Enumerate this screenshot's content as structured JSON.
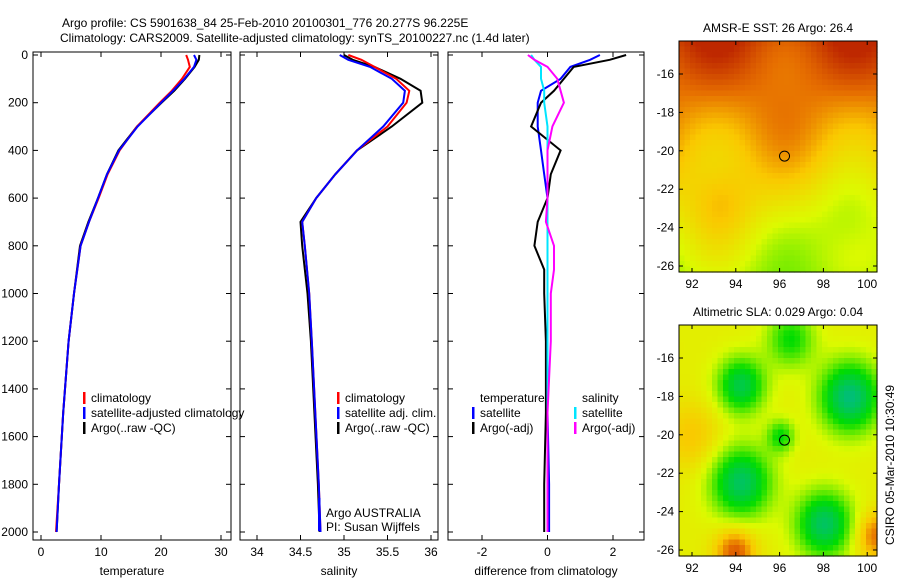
{
  "title_line1": "Argo profile: CS 5901638_84 25-Feb-2010 20100301_776 20.277S 96.225E",
  "title_line2": "Climatology: CARS2009. Satellite-adjusted climatology: synTS_20100227.nc (1.4d later)",
  "side_label": "CSIRO 05-Mar-2010 10:30:49",
  "colors": {
    "climatology": "#ff0000",
    "satellite": "#0000ff",
    "argo": "#000000",
    "sat_sal": "#00e5ff",
    "argo_sal": "#ff00ff"
  },
  "chart_data": [
    {
      "type": "line",
      "xlabel": "temperature",
      "xlim": [
        -2,
        32
      ],
      "ylim": [
        2050,
        0
      ],
      "xticks": [
        0,
        10,
        20,
        30
      ],
      "yticks": [
        0,
        200,
        400,
        600,
        800,
        1000,
        1200,
        1400,
        1600,
        1800,
        2000
      ],
      "legend": [
        "climatology",
        "satellite-adjusted climatology",
        "Argo(..raw -QC)"
      ],
      "depth": [
        0,
        20,
        50,
        100,
        150,
        200,
        300,
        400,
        500,
        600,
        700,
        800,
        1000,
        1200,
        1500,
        1800,
        2000
      ],
      "series": [
        {
          "name": "climatology",
          "values": [
            24.2,
            24.5,
            24.8,
            23.5,
            21.8,
            19.8,
            16.0,
            13.1,
            11.1,
            9.6,
            8.0,
            6.6,
            5.5,
            4.6,
            3.7,
            3.0,
            2.5
          ]
        },
        {
          "name": "satellite-adjusted climatology",
          "values": [
            25.5,
            25.9,
            25.5,
            23.9,
            22.0,
            20.0,
            16.1,
            13.0,
            11.0,
            9.5,
            8.0,
            6.6,
            5.5,
            4.6,
            3.7,
            3.0,
            2.6
          ]
        },
        {
          "name": "Argo(..raw -QC)",
          "values": [
            26.4,
            26.3,
            25.6,
            24.0,
            22.2,
            20.1,
            16.0,
            12.9,
            11.0,
            9.5,
            7.9,
            6.5,
            5.5,
            4.6,
            3.7,
            3.0,
            2.6
          ]
        }
      ]
    },
    {
      "type": "line",
      "xlabel": "salinity",
      "xlim": [
        33.8,
        36.1
      ],
      "ylim": [
        2050,
        0
      ],
      "xticks": [
        34,
        34.5,
        35,
        35.5,
        36
      ],
      "legend": [
        "climatology",
        "satellite adj. clim.",
        "Argo(..raw -QC)"
      ],
      "annotation": [
        "Argo AUSTRALIA",
        "PI: Susan Wijffels"
      ],
      "depth": [
        0,
        20,
        50,
        100,
        150,
        200,
        300,
        400,
        500,
        600,
        700,
        800,
        1000,
        1200,
        1500,
        1800,
        2000
      ],
      "series": [
        {
          "name": "climatology",
          "values": [
            35.05,
            35.2,
            35.35,
            35.6,
            35.75,
            35.72,
            35.5,
            35.15,
            34.9,
            34.68,
            34.52,
            34.55,
            34.6,
            34.63,
            34.67,
            34.71,
            34.73
          ]
        },
        {
          "name": "satellite adj. clim.",
          "values": [
            34.95,
            35.05,
            35.3,
            35.55,
            35.7,
            35.68,
            35.45,
            35.15,
            34.9,
            34.68,
            34.52,
            34.55,
            34.6,
            34.63,
            34.67,
            34.71,
            34.73
          ]
        },
        {
          "name": "Argo(..raw -QC)",
          "values": [
            35.0,
            35.1,
            35.35,
            35.65,
            35.88,
            35.9,
            35.55,
            35.15,
            34.9,
            34.68,
            34.5,
            34.52,
            34.58,
            34.62,
            34.66,
            34.7,
            34.72
          ]
        }
      ]
    },
    {
      "type": "line",
      "xlabel": "difference from climatology",
      "xlim": [
        -3,
        3.0
      ],
      "ylim": [
        2050,
        0
      ],
      "xticks": [
        -2,
        0,
        2
      ],
      "legend_temperature": [
        "temperature",
        "satellite",
        "Argo(-adj)"
      ],
      "legend_salinity": [
        "salinity",
        "satellite",
        "Argo(-adj)"
      ],
      "depth": [
        0,
        20,
        50,
        100,
        150,
        200,
        300,
        400,
        500,
        600,
        700,
        800,
        900,
        1000,
        1200,
        1500,
        1800,
        2000
      ],
      "series": [
        {
          "name": "temperature satellite",
          "values": [
            1.6,
            1.3,
            0.7,
            0.4,
            -0.2,
            -0.3,
            -0.3,
            -0.2,
            -0.1,
            0.0,
            0.0,
            0.0,
            0.0,
            0.0,
            0.0,
            0.0,
            0.05,
            0.05
          ]
        },
        {
          "name": "temperature Argo(-adj)",
          "values": [
            2.4,
            1.9,
            0.8,
            0.5,
            0.2,
            -0.2,
            -0.5,
            0.4,
            0.1,
            0.0,
            -0.3,
            -0.4,
            -0.1,
            -0.1,
            -0.05,
            -0.05,
            -0.1,
            -0.1
          ]
        },
        {
          "name": "salinity satellite",
          "values": [
            -0.5,
            -0.4,
            -0.2,
            -0.2,
            -0.1,
            -0.1,
            0.0,
            0.0,
            0.0,
            0.0,
            0.0,
            0.0,
            0.0,
            0.0,
            0.0,
            0.0,
            0.0,
            0.0
          ]
        },
        {
          "name": "salinity Argo(-adj)",
          "values": [
            -0.6,
            -0.4,
            0.0,
            0.3,
            0.4,
            0.5,
            0.15,
            0.0,
            0.0,
            0.0,
            -0.05,
            0.2,
            0.2,
            0.1,
            0.1,
            0.0,
            0.0,
            0.0
          ]
        }
      ]
    },
    {
      "type": "heatmap",
      "title": "AMSR-E SST: 26 Argo: 26.4",
      "xticks": [
        92,
        94,
        96,
        98,
        100
      ],
      "yticks": [
        -16,
        -18,
        -20,
        -22,
        -24,
        -26
      ],
      "xlim": [
        90.8,
        101.6
      ],
      "ylim": [
        -26.3,
        -14.3
      ],
      "argo_position": {
        "lon": 96.225,
        "lat": -20.277
      }
    },
    {
      "type": "heatmap",
      "title": "Altimetric SLA: 0.029 Argo: 0.04",
      "xticks": [
        92,
        94,
        96,
        98,
        100
      ],
      "yticks": [
        -16,
        -18,
        -20,
        -22,
        -24,
        -26
      ],
      "xlim": [
        90.8,
        101.6
      ],
      "ylim": [
        -26.3,
        -14.3
      ],
      "argo_position": {
        "lon": 96.225,
        "lat": -20.277
      }
    }
  ]
}
